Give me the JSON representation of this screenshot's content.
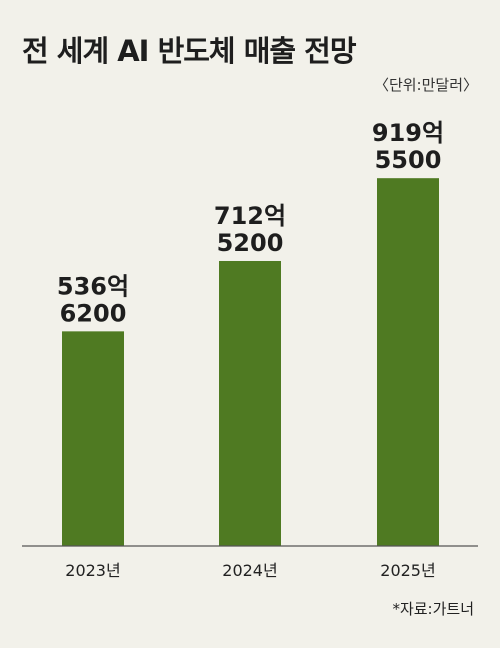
{
  "title": "전 세계 AI 반도체 매출 전망",
  "unit": "〈단위:만달러〉",
  "source": "*자료:가트너",
  "colors": {
    "bar": "#4f7a22",
    "text": "#1e1e1e",
    "axis": "#555555",
    "background": "#f2f1ea"
  },
  "chart_data": {
    "type": "bar",
    "title": "전 세계 AI 반도체 매출 전망",
    "xlabel": "",
    "ylabel": "",
    "unit": "만달러",
    "categories": [
      "2023년",
      "2024년",
      "2025년"
    ],
    "values": [
      5366200,
      7125200,
      9195500
    ],
    "value_labels": [
      [
        "536억",
        "6200"
      ],
      [
        "712억",
        "5200"
      ],
      [
        "919억",
        "5500"
      ]
    ],
    "ylim": [
      0,
      10000000
    ],
    "grid": false,
    "legend": "none"
  }
}
